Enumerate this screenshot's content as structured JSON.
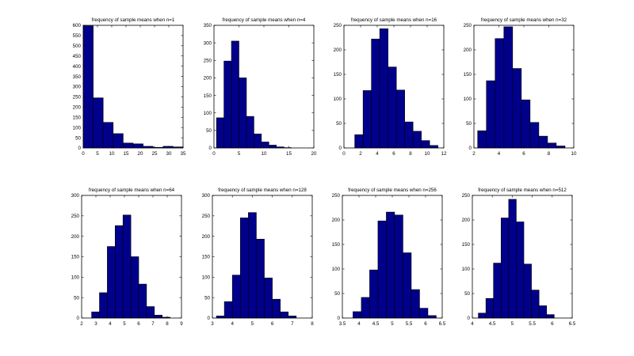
{
  "figure": {
    "background": "#ffffff",
    "bar_color": "#00008b",
    "edge_color": "#000000"
  },
  "chart_data": [
    {
      "type": "bar",
      "title": "frequency of sample means when n=1",
      "xlim": [
        0,
        35
      ],
      "ylim": [
        0,
        600
      ],
      "xticks": [
        0,
        5,
        10,
        15,
        20,
        25,
        30,
        35
      ],
      "yticks": [
        0,
        50,
        100,
        150,
        200,
        250,
        300,
        350,
        400,
        450,
        500,
        550,
        600
      ],
      "bin_edges": [
        0,
        3.5,
        7,
        10.5,
        14,
        17.5,
        21,
        24.5,
        28,
        31.5,
        35
      ],
      "values": [
        597,
        245,
        125,
        70,
        24,
        20,
        8,
        3,
        8,
        5
      ]
    },
    {
      "type": "bar",
      "title": "frequency of sample means when n=4",
      "xlim": [
        0,
        20
      ],
      "ylim": [
        0,
        350
      ],
      "xticks": [
        0,
        5,
        10,
        15,
        20
      ],
      "yticks": [
        0,
        50,
        100,
        150,
        200,
        250,
        300,
        350
      ],
      "bin_edges": [
        0.5,
        2,
        3.5,
        5,
        6.5,
        8,
        9.5,
        11,
        12.5,
        14,
        15.5
      ],
      "values": [
        86,
        248,
        305,
        200,
        90,
        40,
        17,
        8,
        3,
        1
      ]
    },
    {
      "type": "bar",
      "title": "frequency of sample means when n=16",
      "xlim": [
        0,
        12
      ],
      "ylim": [
        0,
        250
      ],
      "xticks": [
        0,
        2,
        4,
        6,
        8,
        10,
        12
      ],
      "yticks": [
        0,
        50,
        100,
        150,
        200,
        250
      ],
      "bin_edges": [
        1.3,
        2.3,
        3.3,
        4.3,
        5.3,
        6.3,
        7.3,
        8.3,
        9.3,
        10.3,
        11.3
      ],
      "values": [
        27,
        117,
        222,
        243,
        165,
        118,
        53,
        34,
        15,
        5
      ]
    },
    {
      "type": "bar",
      "title": "frequency of sample means when n=32",
      "xlim": [
        2,
        10
      ],
      "ylim": [
        0,
        250
      ],
      "xticks": [
        2,
        4,
        6,
        8,
        10
      ],
      "yticks": [
        0,
        50,
        100,
        150,
        200,
        250
      ],
      "bin_edges": [
        2.3,
        3.0,
        3.7,
        4.4,
        5.1,
        5.8,
        6.5,
        7.2,
        7.9,
        8.6,
        9.3
      ],
      "values": [
        35,
        137,
        223,
        247,
        162,
        98,
        52,
        24,
        10,
        4
      ]
    },
    {
      "type": "bar",
      "title": "frequency of sample means when n=64",
      "xlim": [
        2,
        9
      ],
      "ylim": [
        0,
        300
      ],
      "xticks": [
        2,
        3,
        4,
        5,
        6,
        7,
        8,
        9
      ],
      "yticks": [
        0,
        50,
        100,
        150,
        200,
        250,
        300
      ],
      "bin_edges": [
        2.7,
        3.25,
        3.8,
        4.35,
        4.9,
        5.45,
        6.0,
        6.55,
        7.1,
        7.65,
        8.2
      ],
      "values": [
        15,
        62,
        175,
        226,
        252,
        150,
        83,
        28,
        7,
        2
      ]
    },
    {
      "type": "bar",
      "title": "frequency of sample means when n=128",
      "xlim": [
        3,
        8
      ],
      "ylim": [
        0,
        300
      ],
      "xticks": [
        3,
        4,
        5,
        6,
        7,
        8
      ],
      "yticks": [
        0,
        50,
        100,
        150,
        200,
        250,
        300
      ],
      "bin_edges": [
        3.2,
        3.6,
        4.0,
        4.4,
        4.8,
        5.2,
        5.6,
        6.0,
        6.4,
        6.8,
        7.2
      ],
      "values": [
        5,
        40,
        105,
        245,
        258,
        193,
        98,
        46,
        15,
        5
      ]
    },
    {
      "type": "bar",
      "title": "frequency of sample means when n=256",
      "xlim": [
        3.5,
        6.5
      ],
      "ylim": [
        0,
        250
      ],
      "xticks": [
        3.5,
        4,
        4.5,
        5,
        5.5,
        6,
        6.5
      ],
      "yticks": [
        0,
        50,
        100,
        150,
        200,
        250
      ],
      "bin_edges": [
        3.82,
        4.07,
        4.32,
        4.57,
        4.82,
        5.07,
        5.32,
        5.57,
        5.82,
        6.07,
        6.32
      ],
      "values": [
        13,
        42,
        98,
        198,
        216,
        210,
        133,
        58,
        20,
        5
      ]
    },
    {
      "type": "bar",
      "title": "frequency of sample means when n=512",
      "xlim": [
        4,
        6.5
      ],
      "ylim": [
        0,
        250
      ],
      "xticks": [
        4,
        4.5,
        5,
        5.5,
        6,
        6.5
      ],
      "yticks": [
        0,
        50,
        100,
        150,
        200,
        250
      ],
      "bin_edges": [
        4.15,
        4.34,
        4.53,
        4.72,
        4.91,
        5.1,
        5.29,
        5.48,
        5.67,
        5.86,
        6.05
      ],
      "values": [
        10,
        40,
        112,
        204,
        242,
        196,
        110,
        57,
        25,
        7
      ]
    }
  ]
}
